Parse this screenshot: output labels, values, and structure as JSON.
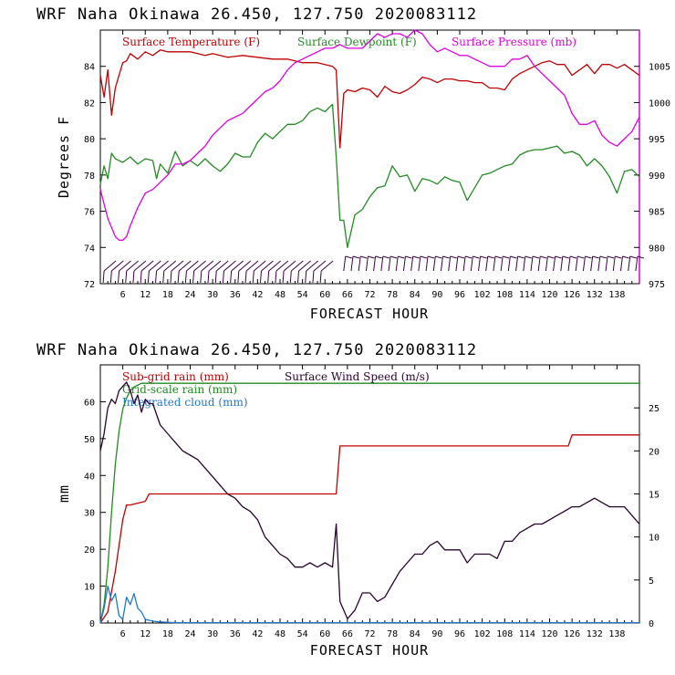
{
  "chart_data": [
    {
      "type": "line",
      "title": "WRF   Naha Okinawa   26.450, 127.750   2020083112",
      "xlabel": "FORECAST HOUR",
      "ylabel": "Degrees F",
      "xlim": [
        0,
        144
      ],
      "ylim": [
        72,
        86
      ],
      "y2lim": [
        975,
        1010
      ],
      "x_ticks": [
        6,
        12,
        18,
        24,
        30,
        36,
        42,
        48,
        54,
        60,
        66,
        72,
        78,
        84,
        90,
        96,
        102,
        108,
        114,
        120,
        126,
        132,
        138
      ],
      "y_ticks": [
        72,
        74,
        76,
        78,
        80,
        82,
        84
      ],
      "y2_ticks": [
        975,
        980,
        985,
        990,
        995,
        1000,
        1005
      ],
      "legend": [
        {
          "name": "Surface Temperature (F)",
          "color": "#c00000"
        },
        {
          "name": "Surface Dewpoint (F)",
          "color": "#228b22"
        },
        {
          "name": "Surface Pressure (mb)",
          "color": "#e000e0"
        }
      ],
      "series": [
        {
          "name": "Surface Temperature (F)",
          "axis": "left",
          "color": "#c00000",
          "x": [
            0,
            1,
            2,
            3,
            4,
            5,
            6,
            7,
            8,
            10,
            12,
            14,
            16,
            18,
            20,
            22,
            24,
            26,
            28,
            30,
            34,
            38,
            42,
            46,
            50,
            54,
            58,
            60,
            62,
            63,
            64,
            65,
            66,
            68,
            70,
            72,
            74,
            76,
            78,
            80,
            82,
            84,
            86,
            88,
            90,
            92,
            94,
            96,
            98,
            100,
            102,
            104,
            106,
            108,
            110,
            112,
            114,
            116,
            118,
            120,
            122,
            124,
            126,
            128,
            130,
            132,
            134,
            136,
            138,
            140,
            142,
            144
          ],
          "y": [
            83.5,
            82.3,
            83.8,
            81.3,
            82.8,
            83.5,
            84.2,
            84.3,
            84.7,
            84.4,
            84.8,
            84.6,
            84.9,
            84.8,
            84.8,
            84.8,
            84.8,
            84.7,
            84.6,
            84.7,
            84.5,
            84.6,
            84.5,
            84.4,
            84.4,
            84.2,
            84.2,
            84.1,
            84.0,
            83.8,
            79.5,
            82.5,
            82.7,
            82.6,
            82.8,
            82.7,
            82.3,
            82.9,
            82.6,
            82.5,
            82.7,
            83.0,
            83.4,
            83.3,
            83.1,
            83.3,
            83.3,
            83.2,
            83.2,
            83.1,
            83.1,
            82.8,
            82.8,
            82.7,
            83.3,
            83.6,
            83.8,
            84.0,
            84.2,
            84.3,
            84.1,
            84.1,
            83.5,
            83.8,
            84.1,
            83.6,
            84.1,
            84.1,
            83.9,
            84.1,
            83.8,
            83.5
          ]
        },
        {
          "name": "Surface Dewpoint (F)",
          "axis": "left",
          "color": "#228b22",
          "x": [
            0,
            1,
            2,
            3,
            4,
            6,
            8,
            10,
            12,
            14,
            15,
            16,
            18,
            20,
            22,
            24,
            26,
            28,
            30,
            32,
            34,
            36,
            38,
            40,
            42,
            44,
            46,
            48,
            50,
            52,
            54,
            56,
            58,
            60,
            62,
            63,
            64,
            65,
            66,
            68,
            70,
            72,
            74,
            76,
            78,
            80,
            82,
            84,
            86,
            88,
            90,
            92,
            94,
            96,
            98,
            100,
            102,
            104,
            106,
            108,
            110,
            112,
            114,
            116,
            118,
            120,
            122,
            124,
            126,
            128,
            130,
            132,
            134,
            136,
            138,
            140,
            142,
            144
          ],
          "y": [
            77.5,
            78.5,
            77.8,
            79.2,
            78.9,
            78.7,
            79.0,
            78.6,
            78.9,
            78.8,
            77.8,
            78.6,
            78.1,
            79.3,
            78.5,
            78.8,
            78.5,
            78.9,
            78.5,
            78.2,
            78.6,
            79.2,
            79.0,
            79.0,
            79.8,
            80.3,
            80.0,
            80.4,
            80.8,
            80.8,
            81.0,
            81.5,
            81.7,
            81.5,
            81.9,
            79.0,
            75.5,
            75.5,
            74.0,
            75.8,
            76.1,
            76.8,
            77.3,
            77.4,
            78.5,
            77.9,
            78.0,
            77.1,
            77.8,
            77.7,
            77.5,
            77.9,
            77.7,
            77.6,
            76.6,
            77.3,
            78.0,
            78.1,
            78.3,
            78.5,
            78.6,
            79.1,
            79.3,
            79.4,
            79.4,
            79.5,
            79.6,
            79.2,
            79.3,
            79.1,
            78.5,
            78.9,
            78.5,
            77.9,
            77.0,
            78.2,
            78.3,
            77.9
          ]
        },
        {
          "name": "Surface Pressure (mb)",
          "axis": "right",
          "color": "#e000e0",
          "x": [
            0,
            2,
            4,
            5,
            6,
            7,
            8,
            10,
            12,
            14,
            16,
            18,
            20,
            22,
            24,
            26,
            28,
            30,
            32,
            34,
            36,
            38,
            40,
            42,
            44,
            46,
            48,
            50,
            52,
            54,
            56,
            58,
            60,
            62,
            64,
            66,
            68,
            70,
            72,
            74,
            76,
            78,
            80,
            82,
            84,
            86,
            88,
            90,
            92,
            94,
            96,
            98,
            100,
            102,
            104,
            106,
            108,
            110,
            112,
            114,
            116,
            118,
            120,
            122,
            124,
            126,
            128,
            130,
            132,
            134,
            136,
            138,
            140,
            142,
            144
          ],
          "y": [
            988.0,
            984.0,
            981.5,
            981.0,
            981.0,
            981.5,
            983.0,
            985.5,
            987.5,
            988.0,
            989.0,
            990.0,
            991.5,
            991.5,
            992.0,
            993.0,
            994.0,
            995.5,
            996.5,
            997.5,
            998.0,
            998.5,
            999.5,
            1000.5,
            1001.5,
            1002.0,
            1003.0,
            1004.5,
            1005.5,
            1006.0,
            1006.5,
            1007.0,
            1007.5,
            1007.5,
            1008.0,
            1007.5,
            1007.5,
            1007.5,
            1008.5,
            1009.5,
            1009.0,
            1009.5,
            1009.5,
            1009.0,
            1010.0,
            1009.5,
            1008.0,
            1007.0,
            1007.5,
            1007.0,
            1006.5,
            1006.5,
            1006.0,
            1005.5,
            1005.0,
            1005.0,
            1005.0,
            1006.0,
            1006.0,
            1006.5,
            1005.0,
            1004.0,
            1003.0,
            1002.0,
            1001.0,
            998.5,
            997.0,
            997.0,
            997.5,
            995.5,
            994.5,
            994.0,
            995.0,
            996.0,
            998.0
          ]
        }
      ],
      "wind_barbs": {
        "color": "#3a0040",
        "hours_first": [
          1,
          60
        ],
        "hours_second": [
          65,
          143
        ],
        "interval": 2
      }
    },
    {
      "type": "line",
      "title": "WRF   Naha Okinawa   26.450, 127.750   2020083112",
      "xlabel": "FORECAST HOUR",
      "ylabel": "mm",
      "xlim": [
        0,
        144
      ],
      "ylim": [
        0,
        70
      ],
      "y2lim": [
        0,
        30
      ],
      "x_ticks": [
        6,
        12,
        18,
        24,
        30,
        36,
        42,
        48,
        54,
        60,
        66,
        72,
        78,
        84,
        90,
        96,
        102,
        108,
        114,
        120,
        126,
        132,
        138
      ],
      "y_ticks": [
        0,
        10,
        20,
        30,
        40,
        50,
        60
      ],
      "y2_ticks": [
        0,
        5,
        10,
        15,
        20,
        25
      ],
      "legend": [
        {
          "name": "Sub-grid rain (mm)",
          "color": "#c00000"
        },
        {
          "name": "Grid-scale rain (mm)",
          "color": "#228b22"
        },
        {
          "name": "Integrated cloud (mm)",
          "color": "#1e78d0"
        },
        {
          "name": "Surface Wind Speed (m/s)",
          "color": "#2a0030"
        }
      ],
      "series": [
        {
          "name": "Sub-grid rain (mm)",
          "axis": "left",
          "color": "#c00000",
          "x": [
            0,
            2,
            4,
            6,
            7,
            8,
            12,
            13,
            63,
            64,
            125,
            126,
            144
          ],
          "y": [
            0,
            3,
            14,
            28,
            32,
            32,
            33,
            35,
            35,
            48,
            48,
            51,
            51
          ]
        },
        {
          "name": "Grid-scale rain (mm)",
          "axis": "left",
          "color": "#228b22",
          "x": [
            0,
            1,
            2,
            3,
            4,
            5,
            6,
            7,
            8,
            9,
            10,
            11,
            12,
            144
          ],
          "y": [
            0,
            5,
            15,
            30,
            43,
            52,
            58,
            61,
            63,
            64,
            64.5,
            65,
            65,
            65
          ]
        },
        {
          "name": "Integrated cloud (mm)",
          "axis": "left",
          "color": "#1e78d0",
          "x": [
            0,
            1,
            2,
            3,
            4,
            5,
            6,
            7,
            8,
            9,
            10,
            11,
            12,
            14,
            16,
            20,
            144
          ],
          "y": [
            0,
            4,
            10,
            6,
            8,
            2,
            1,
            7,
            5,
            8,
            4,
            3,
            1,
            0.5,
            0.3,
            0.1,
            0.1
          ]
        },
        {
          "name": "Surface Wind Speed (m/s)",
          "axis": "right",
          "color": "#2a0030",
          "x": [
            0,
            1,
            2,
            3,
            4,
            5,
            6,
            7,
            8,
            9,
            10,
            11,
            12,
            13,
            14,
            16,
            18,
            20,
            22,
            24,
            26,
            28,
            30,
            32,
            34,
            36,
            38,
            40,
            42,
            44,
            46,
            48,
            50,
            52,
            54,
            56,
            58,
            60,
            62,
            63,
            64,
            65,
            66,
            68,
            70,
            72,
            74,
            76,
            78,
            80,
            82,
            84,
            86,
            88,
            90,
            92,
            94,
            96,
            98,
            100,
            102,
            104,
            106,
            108,
            110,
            112,
            114,
            116,
            118,
            120,
            122,
            124,
            126,
            128,
            130,
            132,
            134,
            136,
            138,
            140,
            142,
            144
          ],
          "y": [
            20,
            22,
            25,
            26,
            25.5,
            27,
            27.5,
            28,
            27,
            25.5,
            26.5,
            24.5,
            26,
            25.5,
            25.5,
            23,
            22,
            21,
            20,
            19.5,
            19,
            18,
            17,
            16,
            15,
            14.5,
            13.5,
            13,
            12,
            10,
            9,
            8,
            7.5,
            6.5,
            6.5,
            7,
            6.5,
            7,
            6.5,
            11.5,
            2.5,
            1.5,
            0.5,
            1.5,
            3.5,
            3.5,
            2.5,
            3,
            4.5,
            6,
            7,
            8,
            8,
            9,
            9.5,
            8.5,
            8.5,
            8.5,
            7,
            8,
            8,
            8,
            7.5,
            9.5,
            9.5,
            10.5,
            11,
            11.5,
            11.5,
            12,
            12.5,
            13,
            13.5,
            13.5,
            14,
            14.5,
            14,
            13.5,
            13.5,
            13.5,
            12.5,
            11.5
          ]
        }
      ]
    }
  ]
}
